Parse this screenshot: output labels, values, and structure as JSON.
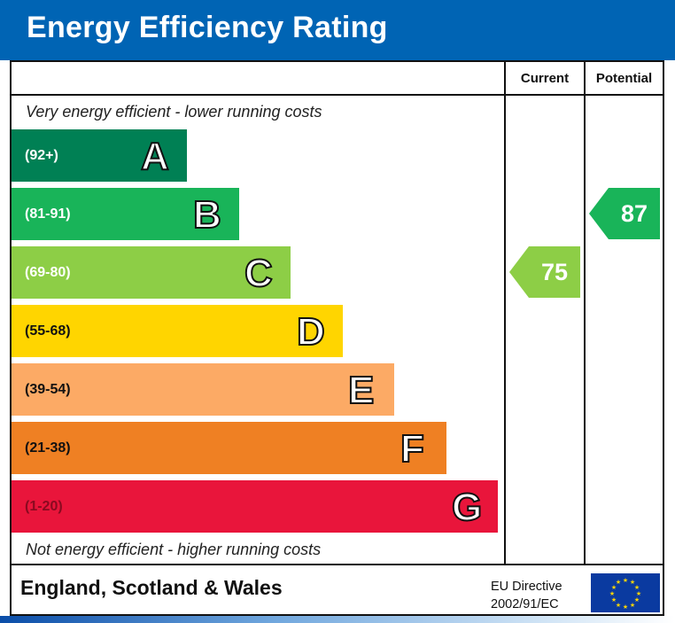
{
  "title": "Energy Efficiency Rating",
  "columns": {
    "current": "Current",
    "potential": "Potential"
  },
  "top_note": "Very energy efficient - lower running costs",
  "bottom_note": "Not energy efficient - higher running costs",
  "footer": {
    "region": "England, Scotland & Wales",
    "directive_line1": "EU Directive",
    "directive_line2": "2002/91/EC"
  },
  "colors": {
    "header": "#0064b4"
  },
  "chart_data": {
    "type": "bar",
    "categories": [
      "A",
      "B",
      "C",
      "D",
      "E",
      "F",
      "G"
    ],
    "ranges": [
      "(92+)",
      "(81-91)",
      "(69-80)",
      "(55-68)",
      "(39-54)",
      "(21-38)",
      "(1-20)"
    ],
    "band_colors": [
      "#008054",
      "#19b459",
      "#8dce46",
      "#ffd500",
      "#fcaa65",
      "#ef8023",
      "#e9153b"
    ],
    "current": {
      "value": 75,
      "band": "C",
      "color": "#8dce46"
    },
    "potential": {
      "value": 87,
      "band": "B",
      "color": "#19b459"
    }
  }
}
